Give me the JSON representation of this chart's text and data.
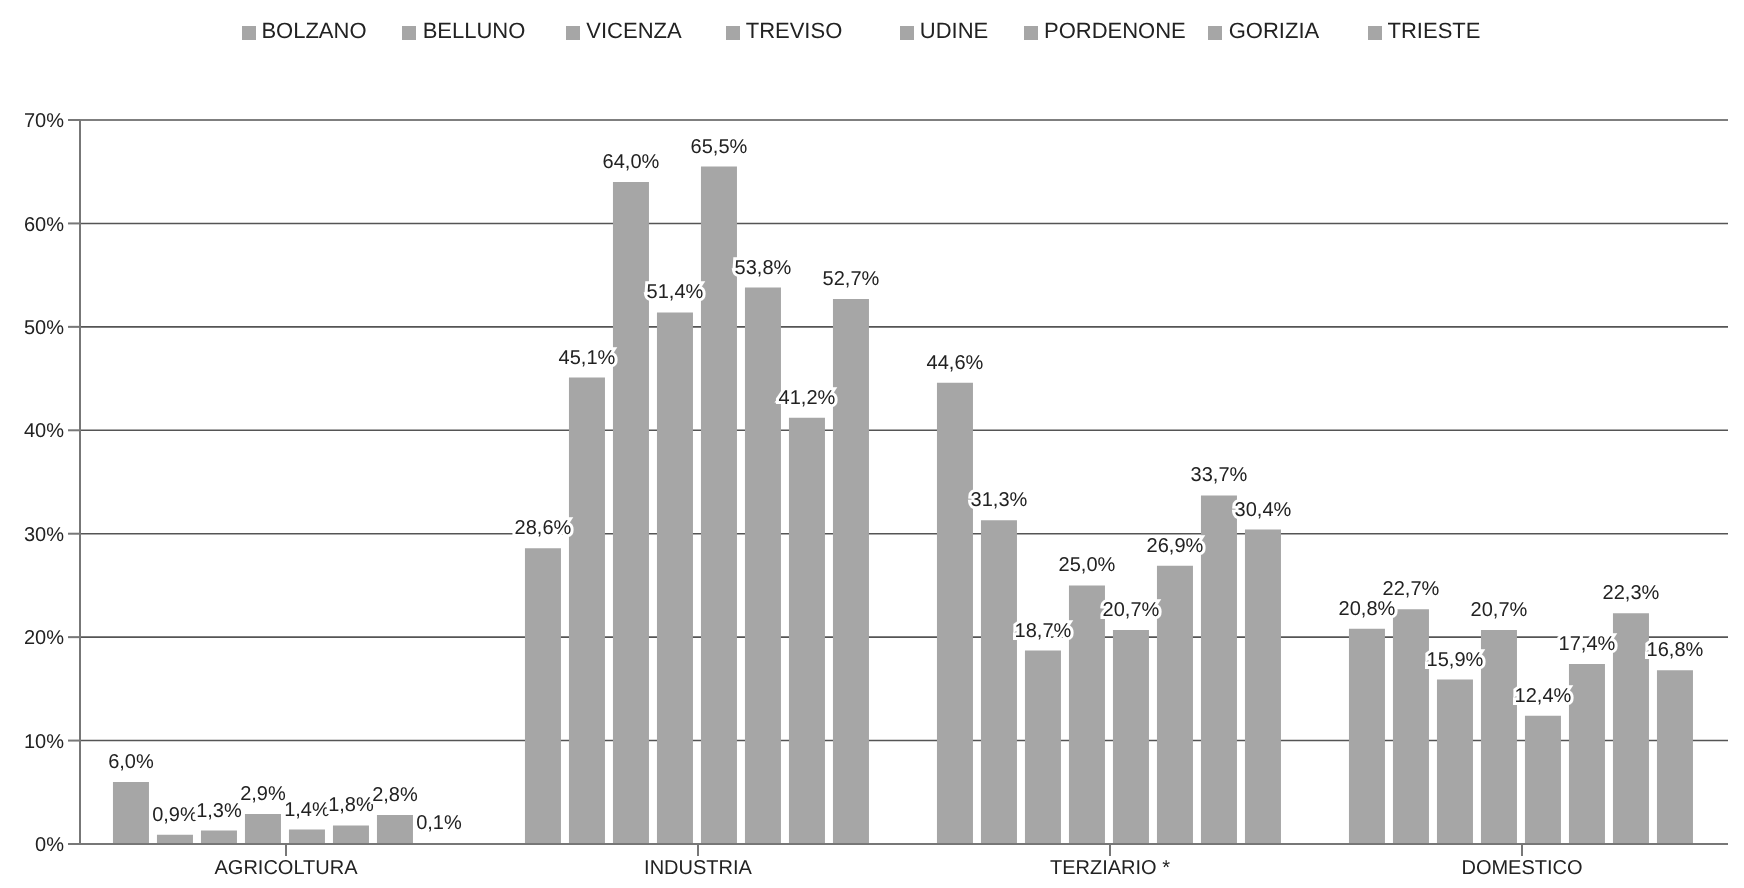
{
  "chart_data": {
    "type": "bar",
    "categories": [
      "AGRICOLTURA",
      "INDUSTRIA",
      "TERZIARIO *",
      "DOMESTICO"
    ],
    "series": [
      {
        "name": "BOLZANO",
        "color": "#a6a6a6",
        "values": [
          6.0,
          28.6,
          44.6,
          20.8
        ],
        "value_labels": [
          "6,0%",
          "28,6%",
          "44,6%",
          "20,8%"
        ]
      },
      {
        "name": "BELLUNO",
        "color": "#a6a6a6",
        "values": [
          0.9,
          45.1,
          31.3,
          22.7
        ],
        "value_labels": [
          "0,9%",
          "45,1%",
          "31,3%",
          "22,7%"
        ]
      },
      {
        "name": "VICENZA",
        "color": "#a6a6a6",
        "values": [
          1.3,
          64.0,
          18.7,
          15.9
        ],
        "value_labels": [
          "1,3%",
          "64,0%",
          "18,7%",
          "15,9%"
        ]
      },
      {
        "name": "TREVISO",
        "color": "#a6a6a6",
        "values": [
          2.9,
          51.4,
          25.0,
          20.7
        ],
        "value_labels": [
          "2,9%",
          "51,4%",
          "25,0%",
          "20,7%"
        ]
      },
      {
        "name": "UDINE",
        "color": "#a6a6a6",
        "values": [
          1.4,
          65.5,
          20.7,
          12.4
        ],
        "value_labels": [
          "1,4%",
          "65,5%",
          "20,7%",
          "12,4%"
        ]
      },
      {
        "name": "PORDENONE",
        "color": "#a6a6a6",
        "values": [
          1.8,
          53.8,
          26.9,
          17.4
        ],
        "value_labels": [
          "1,8%",
          "53,8%",
          "26,9%",
          "17,4%"
        ]
      },
      {
        "name": "GORIZIA",
        "color": "#a6a6a6",
        "values": [
          2.8,
          41.2,
          33.7,
          22.3
        ],
        "value_labels": [
          "2,8%",
          "41,2%",
          "33,7%",
          "22,3%"
        ]
      },
      {
        "name": "TRIESTE",
        "color": "#a6a6a6",
        "values": [
          0.1,
          52.7,
          30.4,
          16.8
        ],
        "value_labels": [
          "0,1%",
          "52,7%",
          "30,4%",
          "16,8%"
        ]
      }
    ],
    "ylim": [
      0,
      70
    ],
    "yticks": [
      {
        "value": 0,
        "label": "0%"
      },
      {
        "value": 10,
        "label": "10%"
      },
      {
        "value": 20,
        "label": "20%"
      },
      {
        "value": 30,
        "label": "30%"
      },
      {
        "value": 40,
        "label": "40%"
      },
      {
        "value": 50,
        "label": "50%"
      },
      {
        "value": 60,
        "label": "60%"
      },
      {
        "value": 70,
        "label": "70%"
      }
    ],
    "grid": "y",
    "legend": "top"
  }
}
